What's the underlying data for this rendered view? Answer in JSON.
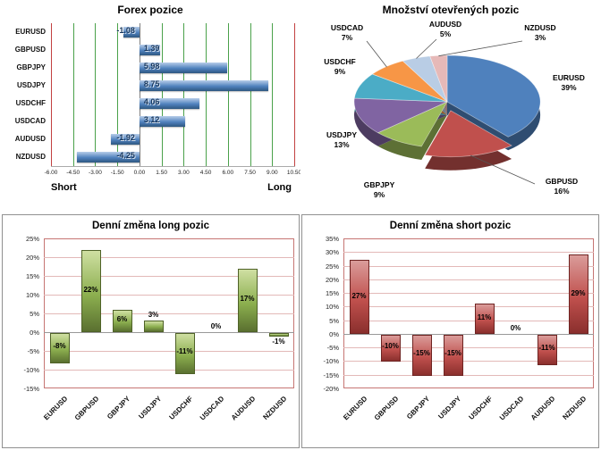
{
  "chart_data": [
    {
      "type": "bar",
      "orientation": "horizontal",
      "title": "Forex pozice",
      "categories": [
        "EURUSD",
        "GBPUSD",
        "GBPJPY",
        "USDJPY",
        "USDCHF",
        "USDCAD",
        "AUDUSD",
        "NZDUSD"
      ],
      "values": [
        -1.08,
        1.39,
        5.98,
        8.75,
        4.06,
        3.12,
        -1.92,
        -4.25
      ],
      "value_labels": [
        "-1.08",
        "1.39",
        "5.98",
        "8.75",
        "4.06",
        "3.12",
        "-1.92",
        "-4.25"
      ],
      "xlim": [
        -6,
        10.5
      ],
      "xticks": [
        "-6.00",
        "-4.50",
        "-3.00",
        "-1.50",
        "0.00",
        "1.50",
        "3.00",
        "4.50",
        "6.00",
        "7.50",
        "9.00",
        "10.50"
      ],
      "xlabel_left": "Short",
      "xlabel_right": "Long",
      "grid": true,
      "colors": {
        "bar": [
          "#b7cde9",
          "#4f81bd",
          "#2e5780"
        ],
        "grid": "#4aa14a",
        "edge": "#c24040",
        "zero": "#7f7f7f",
        "value_label": "#17375e"
      }
    },
    {
      "type": "pie",
      "title": "Množství otevřených pozic",
      "slices": [
        {
          "label": "EURUSD",
          "pct": 39,
          "color": "#4f81bd"
        },
        {
          "label": "GBPUSD",
          "pct": 16,
          "color": "#c0504d",
          "exploded": true
        },
        {
          "label": "GBPJPY",
          "pct": 9,
          "color": "#9bbb59"
        },
        {
          "label": "USDJPY",
          "pct": 13,
          "color": "#8064a2"
        },
        {
          "label": "USDCHF",
          "pct": 9,
          "color": "#4bacc6"
        },
        {
          "label": "USDCAD",
          "pct": 7,
          "color": "#f79646"
        },
        {
          "label": "AUDUSD",
          "pct": 5,
          "color": "#b9cde5"
        },
        {
          "label": "NZDUSD",
          "pct": 3,
          "color": "#e6b9b8"
        }
      ]
    },
    {
      "type": "bar",
      "orientation": "vertical",
      "title": "Denní změna long pozic",
      "categories": [
        "EURUSD",
        "GBPUSD",
        "GBPJPY",
        "USDJPY",
        "USDCHF",
        "USDCAD",
        "AUDUSD",
        "NZDUSD"
      ],
      "values": [
        -8,
        22,
        6,
        3,
        -11,
        0,
        17,
        -1
      ],
      "value_labels": [
        "-8%",
        "22%",
        "6%",
        "3%",
        "-11%",
        "0%",
        "17%",
        "-1%"
      ],
      "ylim": [
        -15,
        25
      ],
      "yticks": [
        "25%",
        "20%",
        "15%",
        "10%",
        "5%",
        "0%",
        "-5%",
        "-10%",
        "-15%"
      ],
      "grid": true,
      "colors": {
        "bar": [
          "#cfdfa2",
          "#8caf4f",
          "#5a7030"
        ],
        "bar_border": "#4f6228",
        "grid": "#e3b9b8",
        "plot_border": "#c67573",
        "zero": "#999999"
      }
    },
    {
      "type": "bar",
      "orientation": "vertical",
      "title": "Denní změna short pozic",
      "categories": [
        "EURUSD",
        "GBPUSD",
        "GBPJPY",
        "USDJPY",
        "USDCHF",
        "USDCAD",
        "AUDUSD",
        "NZDUSD"
      ],
      "values": [
        27,
        -10,
        -15,
        -15,
        11,
        0,
        -11,
        29
      ],
      "value_labels": [
        "27%",
        "-10%",
        "-15%",
        "-15%",
        "11%",
        "0%",
        "-11%",
        "29%"
      ],
      "ylim": [
        -20,
        35
      ],
      "yticks": [
        "35%",
        "30%",
        "25%",
        "20%",
        "15%",
        "10%",
        "5%",
        "0%",
        "-5%",
        "-10%",
        "-15%",
        "-20%"
      ],
      "grid": true,
      "colors": {
        "bar": [
          "#da9c9a",
          "#c0504d",
          "#8a2f2d"
        ],
        "bar_border": "#6e2422",
        "grid": "#e3b9b8",
        "plot_border": "#c67573",
        "zero": "#999999"
      }
    }
  ]
}
